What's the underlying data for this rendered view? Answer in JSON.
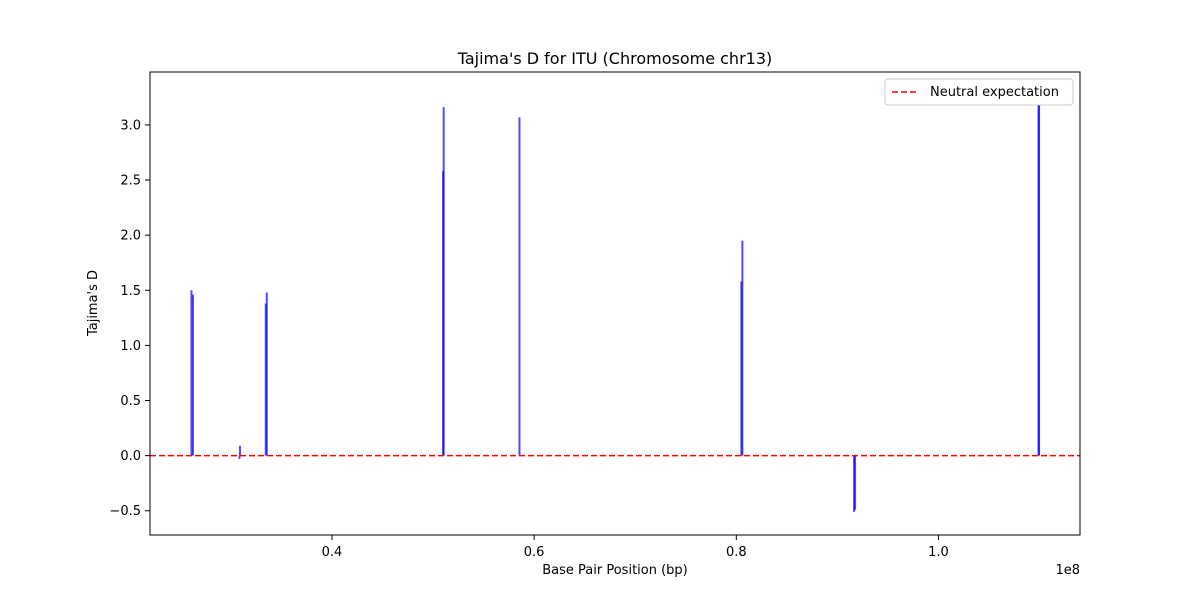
{
  "chart_data": {
    "type": "bar",
    "title": "Tajima's D for ITU (Chromosome chr13)",
    "xlabel": "Base Pair Position (bp)",
    "ylabel": "Tajima's D",
    "x_offset_label": "1e8",
    "xlim": [
      22000000,
      114000000
    ],
    "ylim": [
      -0.72,
      3.48
    ],
    "x_ticks": [
      {
        "value": 40000000,
        "label": "0.4"
      },
      {
        "value": 60000000,
        "label": "0.6"
      },
      {
        "value": 80000000,
        "label": "0.8"
      },
      {
        "value": 100000000,
        "label": "1.0"
      }
    ],
    "y_ticks": [
      {
        "value": -0.5,
        "label": "−0.5"
      },
      {
        "value": 0.0,
        "label": "0.0"
      },
      {
        "value": 0.5,
        "label": "0.5"
      },
      {
        "value": 1.0,
        "label": "1.0"
      },
      {
        "value": 1.5,
        "label": "1.5"
      },
      {
        "value": 2.0,
        "label": "2.0"
      },
      {
        "value": 2.5,
        "label": "2.5"
      },
      {
        "value": 3.0,
        "label": "3.0"
      }
    ],
    "bar_color": "#0000ff",
    "reference_line": {
      "value": 0,
      "color": "#ff0000",
      "style": "dashed",
      "label": "Neutral expectation"
    },
    "legend_position": "top-right",
    "grid": false,
    "points": [
      {
        "x": 26100000,
        "y": 1.5
      },
      {
        "x": 26250000,
        "y": 1.46
      },
      {
        "x": 30900000,
        "y": 0.09
      },
      {
        "x": 30850000,
        "y": -0.03
      },
      {
        "x": 33450000,
        "y": 1.38
      },
      {
        "x": 33550000,
        "y": 1.48
      },
      {
        "x": 51000000,
        "y": 2.58
      },
      {
        "x": 51050000,
        "y": 3.16
      },
      {
        "x": 58550000,
        "y": 3.07
      },
      {
        "x": 80500000,
        "y": 1.58
      },
      {
        "x": 80600000,
        "y": 1.95
      },
      {
        "x": 91650000,
        "y": -0.51
      },
      {
        "x": 91750000,
        "y": -0.49
      },
      {
        "x": 109900000,
        "y": 3.28
      },
      {
        "x": 109950000,
        "y": 3.2
      }
    ]
  }
}
